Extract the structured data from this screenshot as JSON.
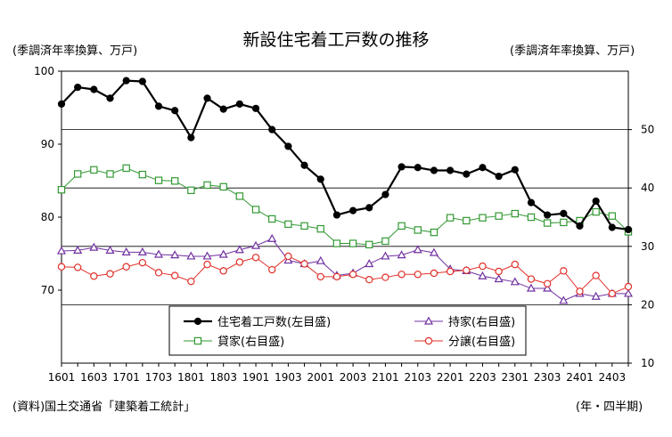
{
  "chart_data": {
    "type": "line",
    "title": "新設住宅着工戸数の推移",
    "left_axis_label": "(季調済年率換算、万戸)",
    "right_axis_label": "(季調済年率換算、万戸)",
    "source_note": "(資料)国土交通省「建築着工統計」",
    "x_axis_note": "(年・四半期)",
    "x": [
      "1601",
      "1602",
      "1603",
      "1604",
      "1701",
      "1702",
      "1703",
      "1704",
      "1801",
      "1802",
      "1803",
      "1804",
      "1901",
      "1902",
      "1903",
      "1904",
      "2001",
      "2002",
      "2003",
      "2004",
      "2101",
      "2102",
      "2103",
      "2104",
      "2201",
      "2202",
      "2203",
      "2204",
      "2301",
      "2302",
      "2303",
      "2304",
      "2401",
      "2402",
      "2403",
      "2404"
    ],
    "x_tick_labels": [
      "1601",
      "1603",
      "1701",
      "1703",
      "1801",
      "1803",
      "1901",
      "1903",
      "2001",
      "2003",
      "2101",
      "2103",
      "2201",
      "2203",
      "2301",
      "2303",
      "2401",
      "2403"
    ],
    "y_left": {
      "ylim": [
        60,
        100
      ],
      "ticks": [
        70,
        80,
        90,
        100
      ]
    },
    "y_right": {
      "ylim": [
        10,
        60
      ],
      "ticks": [
        10,
        20,
        30,
        40,
        50
      ]
    },
    "grid": true,
    "series": [
      {
        "name": "住宅着工戸数(左目盛)",
        "axis": "left",
        "color": "#000000",
        "marker": "filled-circle",
        "values": [
          95.5,
          97.8,
          97.5,
          96.3,
          98.7,
          98.6,
          95.2,
          94.6,
          90.9,
          96.3,
          94.8,
          95.5,
          94.9,
          92.0,
          89.7,
          87.1,
          85.2,
          80.3,
          80.9,
          81.3,
          83.1,
          86.9,
          86.8,
          86.4,
          86.4,
          85.9,
          86.8,
          85.6,
          86.5,
          82.0,
          80.3,
          80.5,
          78.8,
          82.2,
          78.6,
          78.3
        ]
      },
      {
        "name": "持家(右目盛)",
        "axis": "right",
        "color": "#7030a0",
        "marker": "open-triangle",
        "values": [
          29.2,
          29.3,
          29.8,
          29.3,
          29.0,
          29.0,
          28.6,
          28.5,
          28.3,
          28.3,
          28.6,
          29.4,
          30.1,
          31.3,
          27.6,
          27.0,
          27.5,
          25.0,
          25.4,
          27.0,
          28.3,
          28.5,
          29.4,
          28.9,
          26.1,
          25.8,
          24.9,
          24.4,
          23.9,
          22.8,
          22.8,
          20.7,
          21.9,
          21.4,
          21.9,
          21.9
        ]
      },
      {
        "name": "貸家(右目盛)",
        "axis": "right",
        "color": "#339933",
        "marker": "open-square",
        "values": [
          39.7,
          42.4,
          43.1,
          42.4,
          43.4,
          42.3,
          41.3,
          41.2,
          39.6,
          40.5,
          40.2,
          38.6,
          36.3,
          34.7,
          33.8,
          33.5,
          33.0,
          30.5,
          30.5,
          30.3,
          30.9,
          33.5,
          32.8,
          32.4,
          34.9,
          34.4,
          34.9,
          35.2,
          35.6,
          35.0,
          34.0,
          34.1,
          34.4,
          35.9,
          35.2,
          32.5
        ]
      },
      {
        "name": "分譲(右目盛)",
        "axis": "right",
        "color": "#e0302a",
        "marker": "open-circle",
        "values": [
          26.5,
          26.4,
          24.9,
          25.3,
          26.5,
          27.2,
          25.5,
          25.0,
          24.0,
          26.9,
          25.8,
          27.3,
          28.1,
          26.0,
          28.3,
          27.0,
          24.8,
          24.8,
          25.2,
          24.3,
          24.7,
          25.2,
          25.2,
          25.4,
          25.7,
          25.9,
          26.6,
          25.7,
          26.9,
          24.4,
          23.6,
          25.8,
          22.3,
          25.0,
          21.9,
          23.1
        ]
      }
    ],
    "legend": {
      "placement": "bottom-center-inside",
      "order": [
        "住宅着工戸数(左目盛)",
        "持家(右目盛)",
        "貸家(右目盛)",
        "分譲(右目盛)"
      ]
    }
  }
}
